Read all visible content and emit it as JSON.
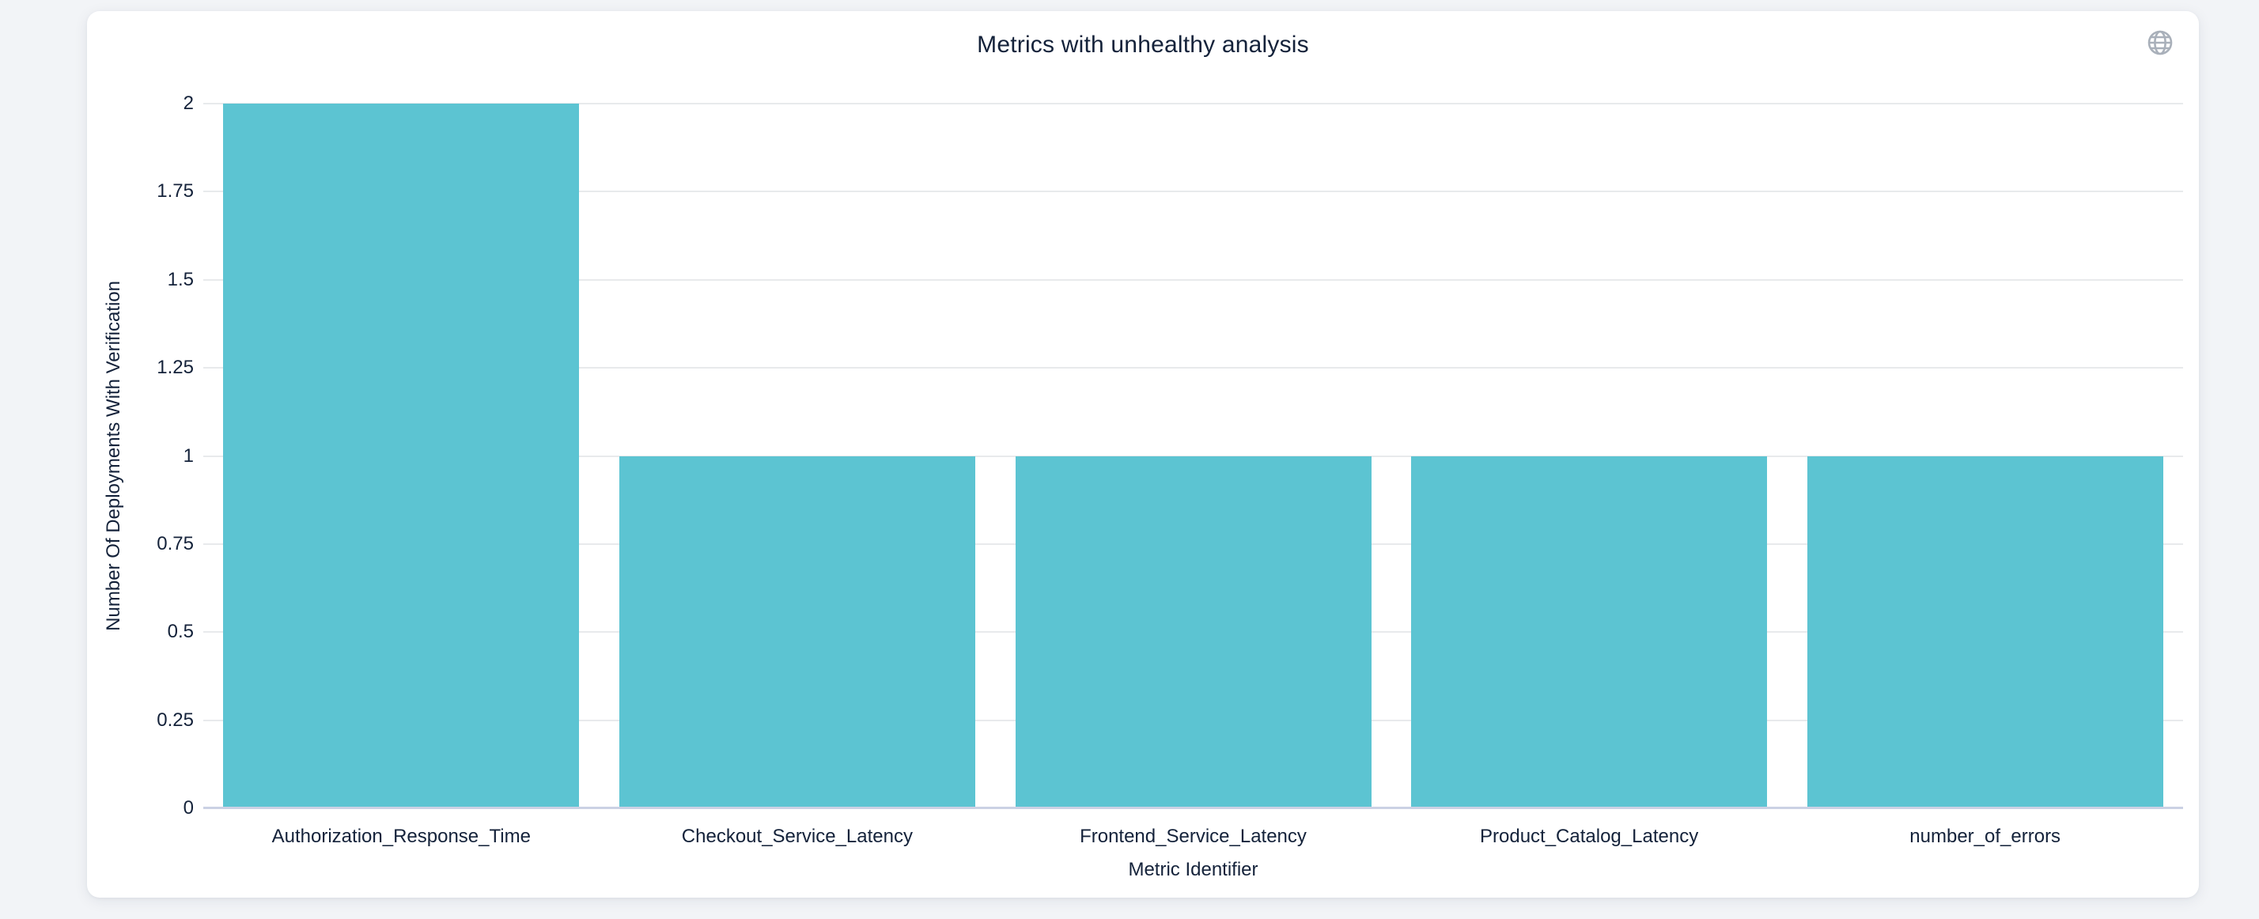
{
  "page": {
    "background_color": "#f2f4f7"
  },
  "card": {
    "background_color": "#ffffff"
  },
  "header": {
    "globe_icon_color": "#a9b0ba"
  },
  "chart_data": {
    "type": "bar",
    "title": "Metrics with unhealthy analysis",
    "categories": [
      "Authorization_Response_Time",
      "Checkout_Service_Latency",
      "Frontend_Service_Latency",
      "Product_Catalog_Latency",
      "number_of_errors"
    ],
    "values": [
      2,
      1,
      1,
      1,
      1
    ],
    "xlabel": "Metric Identifier",
    "ylabel": "Number Of Deployments With Verification",
    "ylim": [
      0,
      2
    ],
    "yticks": [
      0,
      0.25,
      0.5,
      0.75,
      1,
      1.25,
      1.5,
      1.75,
      2
    ],
    "ytick_labels": [
      "0",
      "0.25",
      "0.5",
      "0.75",
      "1",
      "1.25",
      "1.5",
      "1.75",
      "2"
    ],
    "grid": true,
    "legend": false,
    "bar_color": "#5cc4d2",
    "gridline_color": "#e8eaec",
    "axis_line_color": "#cbd1e4",
    "text_color": "#14223a"
  }
}
